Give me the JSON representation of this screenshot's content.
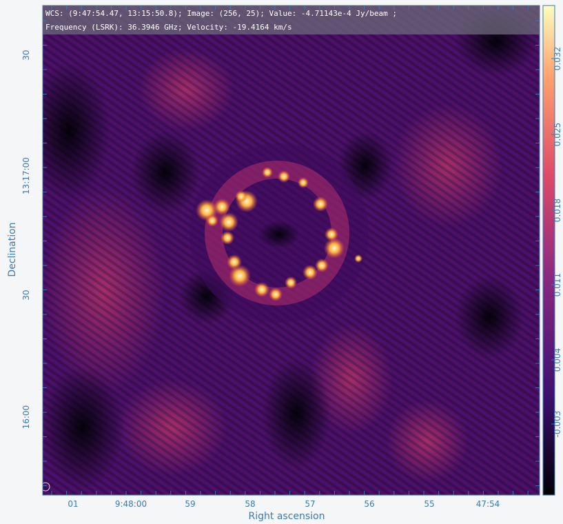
{
  "info": {
    "line1": "WCS: (9:47:54.47, 13:15:50.8); Image: (256, 25); Value: -4.71143e-4 Jy/beam ;",
    "line2": "Frequency (LSRK): 36.3946 GHz; Velocity: -19.4164 km/s"
  },
  "x_axis": {
    "title": "Right ascension",
    "labels": [
      "01",
      "9:48:00",
      "59",
      "58",
      "57",
      "56",
      "55",
      "47:54"
    ]
  },
  "y_axis": {
    "title": "Declination",
    "labels": [
      "30",
      "13:17:00",
      "30",
      "16:00"
    ]
  },
  "colorbar": {
    "labels": [
      "0.032",
      "0.025",
      "0.018",
      "0.011",
      "0.004",
      "-0.003"
    ]
  }
}
